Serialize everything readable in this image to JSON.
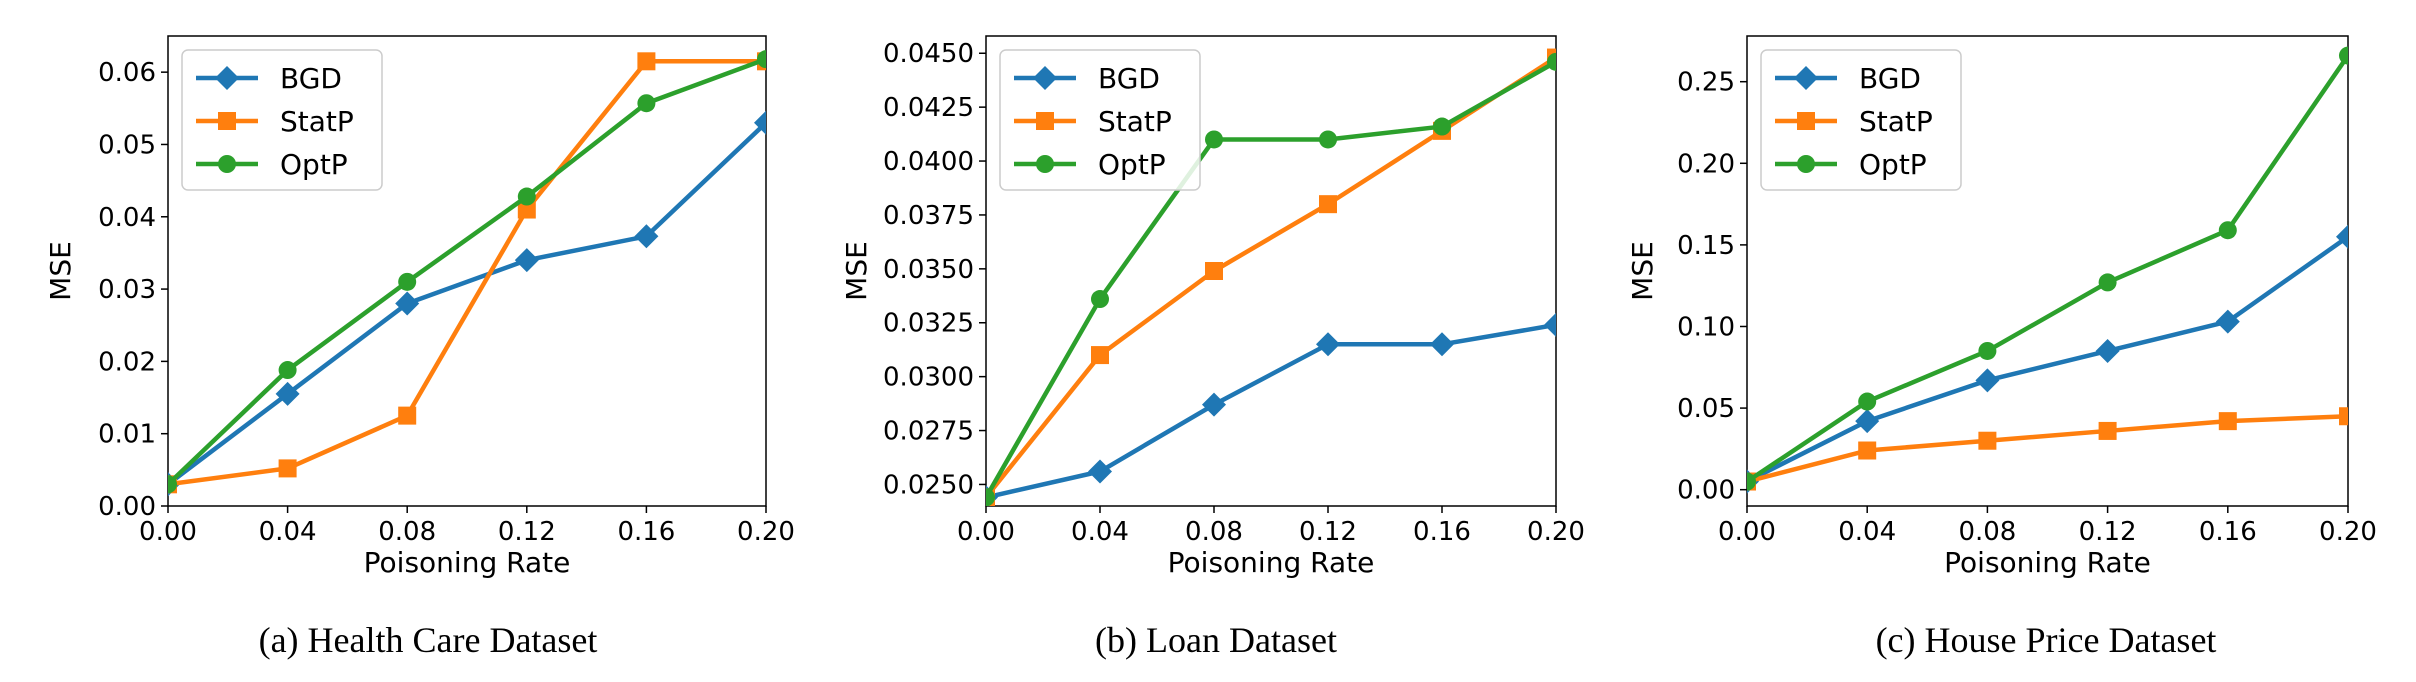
{
  "colors": {
    "BGD": "#1f77b4",
    "StatP": "#ff7f0e",
    "OptP": "#2ca02c"
  },
  "chart_data": [
    {
      "type": "line",
      "caption": "(a) Health Care Dataset",
      "xlabel": "Poisoning Rate",
      "ylabel": "MSE",
      "x": [
        0.0,
        0.04,
        0.08,
        0.12,
        0.16,
        0.2
      ],
      "xticks": [
        "0.00",
        "0.04",
        "0.08",
        "0.12",
        "0.16",
        "0.20"
      ],
      "xlim": [
        0.0,
        0.2
      ],
      "ylim": [
        0.0,
        0.065
      ],
      "yticks": [
        "0.00",
        "0.01",
        "0.02",
        "0.03",
        "0.04",
        "0.05",
        "0.06"
      ],
      "legend_position": "top-left",
      "grid": false,
      "series": [
        {
          "name": "BGD",
          "marker": "diamond",
          "values": [
            0.003,
            0.0155,
            0.028,
            0.034,
            0.0373,
            0.053
          ]
        },
        {
          "name": "StatP",
          "marker": "square",
          "values": [
            0.003,
            0.0052,
            0.0125,
            0.041,
            0.0615,
            0.0615
          ]
        },
        {
          "name": "OptP",
          "marker": "circle",
          "values": [
            0.003,
            0.0188,
            0.031,
            0.0428,
            0.0557,
            0.0618
          ]
        }
      ]
    },
    {
      "type": "line",
      "caption": "(b) Loan Dataset",
      "xlabel": "Poisoning Rate",
      "ylabel": "MSE",
      "x": [
        0.0,
        0.04,
        0.08,
        0.12,
        0.16,
        0.2
      ],
      "xticks": [
        "0.00",
        "0.04",
        "0.08",
        "0.12",
        "0.16",
        "0.20"
      ],
      "xlim": [
        0.0,
        0.2
      ],
      "ylim": [
        0.024,
        0.0458
      ],
      "yticks": [
        "0.0250",
        "0.0275",
        "0.0300",
        "0.0325",
        "0.0350",
        "0.0375",
        "0.0400",
        "0.0425",
        "0.0450"
      ],
      "legend_position": "top-left",
      "grid": false,
      "series": [
        {
          "name": "BGD",
          "marker": "diamond",
          "values": [
            0.0244,
            0.0256,
            0.0287,
            0.0315,
            0.0315,
            0.0324
          ]
        },
        {
          "name": "StatP",
          "marker": "square",
          "values": [
            0.0244,
            0.031,
            0.0349,
            0.038,
            0.0414,
            0.0448
          ]
        },
        {
          "name": "OptP",
          "marker": "circle",
          "values": [
            0.0244,
            0.0336,
            0.041,
            0.041,
            0.0416,
            0.0446
          ]
        }
      ]
    },
    {
      "type": "line",
      "caption": "(c) House Price Dataset",
      "xlabel": "Poisoning Rate",
      "ylabel": "MSE",
      "x": [
        0.0,
        0.04,
        0.08,
        0.12,
        0.16,
        0.2
      ],
      "xticks": [
        "0.00",
        "0.04",
        "0.08",
        "0.12",
        "0.16",
        "0.20"
      ],
      "xlim": [
        0.0,
        0.2
      ],
      "ylim": [
        -0.01,
        0.278
      ],
      "yticks": [
        "0.00",
        "0.05",
        "0.10",
        "0.15",
        "0.20",
        "0.25"
      ],
      "legend_position": "top-left",
      "grid": false,
      "series": [
        {
          "name": "BGD",
          "marker": "diamond",
          "values": [
            0.005,
            0.042,
            0.067,
            0.085,
            0.103,
            0.155
          ]
        },
        {
          "name": "StatP",
          "marker": "square",
          "values": [
            0.005,
            0.024,
            0.03,
            0.036,
            0.042,
            0.045
          ]
        },
        {
          "name": "OptP",
          "marker": "circle",
          "values": [
            0.005,
            0.054,
            0.085,
            0.127,
            0.159,
            0.266
          ]
        }
      ]
    }
  ]
}
